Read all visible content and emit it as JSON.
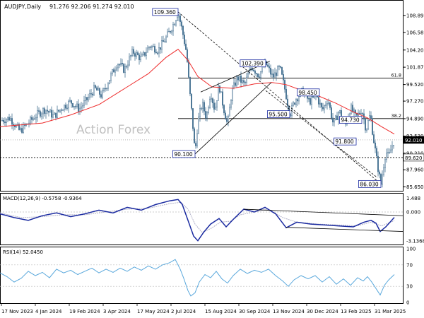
{
  "header": {
    "symbol": "AUDJPY,Daily",
    "ohlc": "91.276 92.206 91.274 92.010"
  },
  "watermark": "Action Forex",
  "colors": {
    "candle": "#4a7494",
    "ma": "#ee2c2c",
    "macd": "#1a2aa0",
    "signal": "#b0b0c8",
    "rsi": "#5aa8dc",
    "trend": "#000000",
    "label_border": "#1a2aa0"
  },
  "chart_data": [
    {
      "type": "candlestick",
      "panel": "price",
      "y_ticks": [
        "108.890",
        "106.580",
        "104.200",
        "101.870",
        "99.520",
        "97.270",
        "94.890",
        "92.530",
        "90.210",
        "87.960",
        "85.650"
      ],
      "ylim": [
        85.3,
        110.6
      ],
      "last_price": "92.010",
      "reference_price": "89.620",
      "x_tick_labels": [
        "17 Nov 2023",
        "4 Jan 2024",
        "19 Feb 2024",
        "3 Apr 2024",
        "17 May 2024",
        "2 Jul 2024",
        "15 Aug 2024",
        "30 Sep 2024",
        "13 Nov 2024",
        "30 Dec 2024",
        "13 Feb 2025",
        "31 Mar 2025"
      ],
      "close_path": [
        [
          0,
          94.6
        ],
        [
          14,
          95.0
        ],
        [
          28,
          93.2
        ],
        [
          40,
          94.3
        ],
        [
          52,
          95.4
        ],
        [
          64,
          96.2
        ],
        [
          76,
          95.2
        ],
        [
          88,
          96.4
        ],
        [
          100,
          97.2
        ],
        [
          112,
          96.2
        ],
        [
          124,
          97.6
        ],
        [
          134,
          99.0
        ],
        [
          144,
          98.0
        ],
        [
          156,
          100.5
        ],
        [
          166,
          102.5
        ],
        [
          176,
          101.5
        ],
        [
          188,
          104.0
        ],
        [
          200,
          103.0
        ],
        [
          212,
          104.8
        ],
        [
          224,
          104.2
        ],
        [
          236,
          106.0
        ],
        [
          246,
          107.8
        ],
        [
          252,
          109.36
        ],
        [
          258,
          106.8
        ],
        [
          264,
          103.8
        ],
        [
          268,
          99.0
        ],
        [
          272,
          95.0
        ],
        [
          276,
          90.1
        ],
        [
          280,
          94.5
        ],
        [
          286,
          97.0
        ],
        [
          292,
          95.0
        ],
        [
          298,
          98.6
        ],
        [
          304,
          96.0
        ],
        [
          310,
          99.5
        ],
        [
          316,
          96.5
        ],
        [
          322,
          94.0
        ],
        [
          328,
          98.5
        ],
        [
          336,
          100.5
        ],
        [
          346,
          99.5
        ],
        [
          356,
          102.0
        ],
        [
          366,
          100.8
        ],
        [
          376,
          102.39
        ],
        [
          386,
          100.5
        ],
        [
          396,
          101.8
        ],
        [
          404,
          98.5
        ],
        [
          410,
          95.5
        ],
        [
          418,
          97.5
        ],
        [
          428,
          98.6
        ],
        [
          438,
          97.2
        ],
        [
          448,
          98.0
        ],
        [
          456,
          96.0
        ],
        [
          464,
          97.6
        ],
        [
          472,
          94.0
        ],
        [
          480,
          96.0
        ],
        [
          488,
          93.8
        ],
        [
          496,
          96.4
        ],
        [
          504,
          95.0
        ],
        [
          512,
          96.2
        ],
        [
          518,
          93.4
        ],
        [
          524,
          95.5
        ],
        [
          528,
          92.5
        ],
        [
          532,
          90.0
        ],
        [
          536,
          87.5
        ],
        [
          539,
          86.03
        ],
        [
          542,
          88.0
        ],
        [
          546,
          90.5
        ],
        [
          550,
          89.6
        ],
        [
          554,
          91.0
        ],
        [
          558,
          92.01
        ]
      ],
      "ma_path": [
        [
          0,
          93.8
        ],
        [
          60,
          94.3
        ],
        [
          100,
          95.4
        ],
        [
          140,
          96.8
        ],
        [
          180,
          99.2
        ],
        [
          210,
          101.0
        ],
        [
          235,
          103.2
        ],
        [
          252,
          104.3
        ],
        [
          266,
          102.8
        ],
        [
          280,
          100.6
        ],
        [
          300,
          99.2
        ],
        [
          330,
          99.0
        ],
        [
          360,
          99.6
        ],
        [
          385,
          99.8
        ],
        [
          405,
          99.5
        ],
        [
          425,
          98.8
        ],
        [
          450,
          98.0
        ],
        [
          475,
          97.0
        ],
        [
          500,
          95.8
        ],
        [
          520,
          95.0
        ],
        [
          540,
          93.8
        ],
        [
          558,
          92.8
        ]
      ],
      "level_lines": [
        {
          "price": 100.4,
          "x_start": 252,
          "x_end": 570,
          "label": "61.8"
        },
        {
          "price": 94.9,
          "x_start": 252,
          "x_end": 570,
          "label": "38.2"
        }
      ],
      "annotations": [
        {
          "text": "109.360",
          "x": 252,
          "price": 109.36,
          "anchor": "left"
        },
        {
          "text": "102.390",
          "x": 376,
          "price": 102.39,
          "anchor": "left"
        },
        {
          "text": "98.450",
          "x": 452,
          "price": 98.45,
          "anchor": "left"
        },
        {
          "text": "95.500",
          "x": 410,
          "price": 95.5,
          "anchor": "left"
        },
        {
          "text": "94.730",
          "x": 512,
          "price": 94.73,
          "anchor": "left"
        },
        {
          "text": "91.800",
          "x": 504,
          "price": 91.8,
          "anchor": "left"
        },
        {
          "text": "90.100",
          "x": 276,
          "price": 90.1,
          "anchor": "left"
        },
        {
          "text": "86.030",
          "x": 539,
          "price": 86.03,
          "anchor": "left"
        }
      ],
      "trendlines": [
        {
          "x1": 252,
          "p1": 109.36,
          "x2": 539,
          "p2": 86.03,
          "dash": true
        },
        {
          "x1": 276,
          "p1": 90.1,
          "x2": 384,
          "p2": 99.8,
          "dash": false
        },
        {
          "x1": 284,
          "p1": 98.5,
          "x2": 382,
          "p2": 102.7,
          "dash": false
        },
        {
          "x1": 376,
          "p1": 98.7,
          "x2": 534,
          "p2": 86.9,
          "dash": true
        }
      ]
    },
    {
      "type": "line",
      "panel": "macd",
      "title": "MACD(12,26,9) -0.5758 -0.9364",
      "y_ticks": [
        "1.488",
        "0.000",
        "-3.1368"
      ],
      "ylim": [
        -3.35,
        1.75
      ],
      "macd_path": [
        [
          0,
          -0.2
        ],
        [
          20,
          -0.6
        ],
        [
          40,
          -0.9
        ],
        [
          60,
          -0.4
        ],
        [
          80,
          -0.1
        ],
        [
          100,
          -0.5
        ],
        [
          120,
          -0.2
        ],
        [
          140,
          0.2
        ],
        [
          160,
          -0.1
        ],
        [
          180,
          0.5
        ],
        [
          200,
          0.2
        ],
        [
          220,
          0.8
        ],
        [
          240,
          1.2
        ],
        [
          252,
          1.35
        ],
        [
          258,
          0.8
        ],
        [
          266,
          -0.9
        ],
        [
          274,
          -2.6
        ],
        [
          280,
          -3.1
        ],
        [
          288,
          -2.2
        ],
        [
          298,
          -1.3
        ],
        [
          310,
          -0.7
        ],
        [
          320,
          -1.6
        ],
        [
          330,
          -0.8
        ],
        [
          345,
          0.3
        ],
        [
          360,
          0.0
        ],
        [
          375,
          0.5
        ],
        [
          390,
          -0.2
        ],
        [
          405,
          -1.7
        ],
        [
          420,
          -1.1
        ],
        [
          440,
          -1.3
        ],
        [
          460,
          -1.4
        ],
        [
          480,
          -1.5
        ],
        [
          500,
          -1.6
        ],
        [
          515,
          -1.1
        ],
        [
          525,
          -0.9
        ],
        [
          532,
          -1.2
        ],
        [
          538,
          -2.1
        ],
        [
          546,
          -1.6
        ],
        [
          558,
          -0.58
        ]
      ],
      "signal_path": [
        [
          0,
          -0.1
        ],
        [
          30,
          -0.6
        ],
        [
          60,
          -0.5
        ],
        [
          90,
          -0.3
        ],
        [
          120,
          -0.3
        ],
        [
          150,
          0.0
        ],
        [
          180,
          0.3
        ],
        [
          210,
          0.4
        ],
        [
          240,
          0.9
        ],
        [
          256,
          1.05
        ],
        [
          266,
          0.3
        ],
        [
          276,
          -1.3
        ],
        [
          286,
          -2.2
        ],
        [
          298,
          -1.8
        ],
        [
          312,
          -1.1
        ],
        [
          326,
          -1.0
        ],
        [
          340,
          -0.3
        ],
        [
          360,
          0.0
        ],
        [
          380,
          0.3
        ],
        [
          400,
          -0.6
        ],
        [
          420,
          -1.1
        ],
        [
          450,
          -1.3
        ],
        [
          480,
          -1.4
        ],
        [
          505,
          -1.5
        ],
        [
          525,
          -1.1
        ],
        [
          540,
          -1.5
        ],
        [
          558,
          -0.94
        ]
      ],
      "trendlines": [
        {
          "x1": 345,
          "v1": 0.3,
          "x2": 570,
          "v2": -0.4
        },
        {
          "x1": 405,
          "v1": -1.65,
          "x2": 570,
          "v2": -2.1
        }
      ]
    },
    {
      "type": "line",
      "panel": "rsi",
      "title": "RSI(14) 52.0450",
      "y_ticks": [
        "100",
        "70",
        "30",
        "0"
      ],
      "ylim": [
        0,
        100
      ],
      "rsi_path": [
        [
          0,
          55
        ],
        [
          10,
          48
        ],
        [
          20,
          38
        ],
        [
          30,
          45
        ],
        [
          40,
          58
        ],
        [
          50,
          50
        ],
        [
          60,
          56
        ],
        [
          70,
          46
        ],
        [
          80,
          62
        ],
        [
          90,
          55
        ],
        [
          100,
          60
        ],
        [
          110,
          52
        ],
        [
          120,
          58
        ],
        [
          130,
          64
        ],
        [
          140,
          55
        ],
        [
          150,
          62
        ],
        [
          160,
          56
        ],
        [
          170,
          64
        ],
        [
          180,
          58
        ],
        [
          190,
          66
        ],
        [
          200,
          60
        ],
        [
          210,
          68
        ],
        [
          220,
          62
        ],
        [
          230,
          70
        ],
        [
          240,
          74
        ],
        [
          248,
          80
        ],
        [
          255,
          62
        ],
        [
          260,
          45
        ],
        [
          266,
          22
        ],
        [
          270,
          12
        ],
        [
          276,
          18
        ],
        [
          282,
          38
        ],
        [
          290,
          52
        ],
        [
          298,
          46
        ],
        [
          306,
          58
        ],
        [
          314,
          44
        ],
        [
          322,
          36
        ],
        [
          330,
          50
        ],
        [
          340,
          62
        ],
        [
          350,
          54
        ],
        [
          360,
          60
        ],
        [
          370,
          56
        ],
        [
          380,
          62
        ],
        [
          390,
          50
        ],
        [
          400,
          40
        ],
        [
          408,
          30
        ],
        [
          416,
          42
        ],
        [
          426,
          50
        ],
        [
          436,
          44
        ],
        [
          446,
          50
        ],
        [
          456,
          38
        ],
        [
          466,
          48
        ],
        [
          476,
          34
        ],
        [
          486,
          44
        ],
        [
          496,
          32
        ],
        [
          506,
          46
        ],
        [
          514,
          40
        ],
        [
          520,
          48
        ],
        [
          526,
          38
        ],
        [
          532,
          26
        ],
        [
          538,
          14
        ],
        [
          544,
          32
        ],
        [
          550,
          42
        ],
        [
          558,
          52
        ]
      ]
    }
  ]
}
